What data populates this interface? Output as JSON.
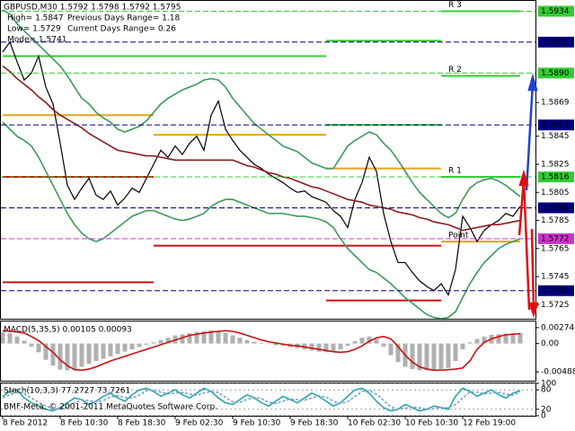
{
  "chart_data": [
    {
      "type": "line",
      "title": "GBPUSD,M30  1.5792 1.5798 1.5792 1.5795",
      "annotations": [
        "High= 1.5847",
        "Previous Days Range= 1.18",
        "Low= 1.5729",
        "Current Days Range= 0.26",
        "Mode= 1.5741"
      ],
      "categories": [
        "8 Feb 2012",
        null,
        null,
        null,
        null,
        null,
        null,
        null,
        "8 Feb 10:30",
        null,
        null,
        null,
        null,
        null,
        null,
        null,
        "8 Feb 18:30",
        null,
        null,
        null,
        null,
        null,
        null,
        null,
        "9 Feb 02:30",
        null,
        null,
        null,
        null,
        null,
        null,
        null,
        "9 Feb 10:30",
        null,
        null,
        null,
        null,
        null,
        null,
        null,
        "9 Feb 18:30",
        null,
        null,
        null,
        null,
        null,
        null,
        null,
        "10 Feb 02:30",
        null,
        null,
        null,
        null,
        null,
        null,
        null,
        "10 Feb 10:30",
        null,
        null,
        null,
        null,
        null,
        null,
        null,
        "12 Feb 19:00",
        null,
        null,
        null,
        null,
        null,
        null,
        null,
        null
      ],
      "series": [
        {
          "color": "#000000",
          "values": [
            1.5905,
            1.5912,
            1.5898,
            1.5885,
            1.589,
            1.5902,
            1.588,
            1.5868,
            1.584,
            1.581,
            1.58,
            1.5808,
            1.5815,
            1.5803,
            1.58,
            1.5806,
            1.5796,
            1.5801,
            1.5808,
            1.5805,
            1.5815,
            1.5825,
            1.5835,
            1.583,
            1.5838,
            1.5832,
            1.584,
            1.5845,
            1.5835,
            1.586,
            1.587,
            1.585,
            1.5842,
            1.5835,
            1.583,
            1.5825,
            1.5822,
            1.5818,
            1.5815,
            1.5812,
            1.5808,
            1.5805,
            1.5806,
            1.5802,
            1.58,
            1.5798,
            1.5792,
            1.5788,
            1.578,
            1.58,
            1.5812,
            1.583,
            1.582,
            1.579,
            1.577,
            1.5755,
            1.5755,
            1.5748,
            1.5742,
            1.5738,
            1.5735,
            1.574,
            1.5732,
            1.575,
            1.5788,
            1.578,
            1.577,
            1.5778,
            1.5782,
            1.5785,
            1.579,
            1.5788,
            1.5795
          ]
        },
        {
          "color": "#8b1c1c",
          "values": [
            1.5895,
            1.5891,
            1.5886,
            1.5882,
            1.5878,
            1.5873,
            1.5869,
            1.5864,
            1.586,
            1.5857,
            1.5854,
            1.5851,
            1.5847,
            1.5844,
            1.5841,
            1.5838,
            1.5835,
            1.5834,
            1.5833,
            1.5832,
            1.5831,
            1.5831,
            1.583,
            1.5829,
            1.5828,
            1.5828,
            1.5828,
            1.5828,
            1.5828,
            1.5828,
            1.5828,
            1.5828,
            1.5828,
            1.5826,
            1.5824,
            1.5823,
            1.5821,
            1.5819,
            1.5818,
            1.5816,
            1.5815,
            1.5813,
            1.5811,
            1.5809,
            1.5808,
            1.5806,
            1.5804,
            1.5802,
            1.58,
            1.5799,
            1.5798,
            1.5796,
            1.5795,
            1.5794,
            1.5793,
            1.5791,
            1.579,
            1.5789,
            1.5787,
            1.5786,
            1.5784,
            1.5783,
            1.5782,
            1.578,
            1.5778,
            1.5779,
            1.578,
            1.5781,
            1.5782,
            1.5782,
            1.5783,
            1.5784,
            1.5785
          ]
        },
        {
          "color": "#3c9a5a",
          "values": [
            1.5935,
            1.5932,
            1.5925,
            1.592,
            1.5915,
            1.591,
            1.5905,
            1.59,
            1.5895,
            1.5888,
            1.588,
            1.5872,
            1.5868,
            1.5862,
            1.5858,
            1.5855,
            1.585,
            1.5848,
            1.585,
            1.5852,
            1.5856,
            1.5862,
            1.5868,
            1.5872,
            1.5875,
            1.5878,
            1.588,
            1.5882,
            1.5885,
            1.5886,
            1.5885,
            1.588,
            1.5872,
            1.5866,
            1.586,
            1.5854,
            1.585,
            1.5846,
            1.5842,
            1.5838,
            1.5836,
            1.5834,
            1.583,
            1.5826,
            1.5824,
            1.5822,
            1.5822,
            1.583,
            1.5838,
            1.5842,
            1.5845,
            1.5848,
            1.5846,
            1.584,
            1.5835,
            1.5828,
            1.582,
            1.5812,
            1.5805,
            1.58,
            1.5795,
            1.579,
            1.5787,
            1.579,
            1.58,
            1.5808,
            1.5812,
            1.5814,
            1.5815,
            1.5813,
            1.581,
            1.5806,
            1.5802
          ]
        },
        {
          "color": "#3c9a5a",
          "values": [
            1.5855,
            1.585,
            1.5845,
            1.5842,
            1.5838,
            1.583,
            1.582,
            1.581,
            1.58,
            1.579,
            1.5782,
            1.5776,
            1.5772,
            1.577,
            1.5772,
            1.5776,
            1.578,
            1.5784,
            1.5788,
            1.579,
            1.5792,
            1.5792,
            1.579,
            1.5788,
            1.5786,
            1.5785,
            1.5786,
            1.5788,
            1.579,
            1.5795,
            1.5798,
            1.58,
            1.58,
            1.5798,
            1.5796,
            1.5794,
            1.5792,
            1.579,
            1.579,
            1.579,
            1.5789,
            1.5788,
            1.5788,
            1.5787,
            1.5786,
            1.5784,
            1.578,
            1.5772,
            1.5765,
            1.576,
            1.5755,
            1.575,
            1.5748,
            1.5744,
            1.574,
            1.5735,
            1.573,
            1.5726,
            1.5722,
            1.5718,
            1.5716,
            1.5715,
            1.5716,
            1.572,
            1.573,
            1.574,
            1.5748,
            1.5755,
            1.576,
            1.5765,
            1.5768,
            1.577,
            1.5772
          ]
        }
      ],
      "pivots": [
        {
          "label": "R 3",
          "color": "#33cc33",
          "values": [
            null,
            null,
            1.5913,
            1.5934
          ]
        },
        {
          "label": "R 2",
          "color": "#33cc33",
          "values": [
            1.5902,
            1.5902,
            1.5853,
            1.5888
          ]
        },
        {
          "label": "R 1",
          "color": "#33cc33",
          "values": [
            null,
            null,
            null,
            1.5816
          ]
        },
        {
          "label": "Point",
          "color": "#e8a317",
          "values": [
            1.586,
            1.5846,
            1.5822,
            1.577
          ]
        },
        {
          "color": "#cc1111",
          "values": [
            1.5816,
            1.5767,
            1.5767,
            null
          ]
        },
        {
          "color": "#cc1111",
          "values": [
            1.5741,
            null,
            1.5728,
            null
          ]
        }
      ],
      "levels": [
        {
          "value": 1.5934,
          "color": "#33cc33"
        },
        {
          "value": 1.5912,
          "color": "#000080"
        },
        {
          "value": 1.589,
          "label": "1.5890",
          "color": "#33cc33"
        },
        {
          "value": 1.5853,
          "color": "#000080"
        },
        {
          "value": 1.5816,
          "color": "#33cc33"
        },
        {
          "value": 1.5794,
          "color": "#000080"
        },
        {
          "value": 1.5772,
          "color": "#cc33cc"
        },
        {
          "value": 1.5735,
          "color": "#000080"
        }
      ],
      "ylim": [
        1.5715,
        1.5942
      ],
      "yticks": [
        1.5869,
        1.5845,
        1.5825,
        1.5805,
        1.5785,
        1.5765,
        1.5745,
        1.5725
      ],
      "grid": false
    },
    {
      "type": "bar",
      "title": "MACD(5,35,5) 0.00105 0.00093",
      "series": [
        {
          "color": "#b0b0b0",
          "values": [
            0.002,
            0.0018,
            0.0012,
            0.0005,
            -0.0005,
            -0.0015,
            -0.0028,
            -0.0038,
            -0.0045,
            -0.0046,
            -0.0044,
            -0.004,
            -0.0035,
            -0.003,
            -0.0026,
            -0.0022,
            -0.0018,
            -0.0014,
            -0.001,
            -0.0006,
            -0.0002,
            0.0002,
            0.0006,
            0.001,
            0.0014,
            0.0016,
            0.0018,
            0.002,
            0.0021,
            0.0022,
            0.0021,
            0.0018,
            0.0014,
            0.001,
            0.0006,
            0.0003,
            0.0001,
            -0.0001,
            -0.0003,
            -0.0004,
            -0.0006,
            -0.0008,
            -0.001,
            -0.0012,
            -0.0014,
            -0.0015,
            -0.0014,
            -0.001,
            -0.0004,
            0.0004,
            0.001,
            0.0012,
            0.0008,
            -0.0005,
            -0.002,
            -0.0032,
            -0.004,
            -0.0044,
            -0.0046,
            -0.0046,
            -0.0045,
            -0.0044,
            -0.0042,
            -0.003,
            -0.001,
            0.0002,
            0.0008,
            0.0012,
            0.0015,
            0.0016,
            0.0017,
            0.0018,
            0.0018
          ]
        },
        {
          "type": "line",
          "color": "#cc1111",
          "values": [
            0.0022,
            0.0021,
            0.002,
            0.0018,
            0.0012,
            0.0005,
            -0.0005,
            -0.0015,
            -0.0028,
            -0.0038,
            -0.0045,
            -0.0046,
            -0.0044,
            -0.004,
            -0.0035,
            -0.003,
            -0.0026,
            -0.0022,
            -0.0018,
            -0.0014,
            -0.001,
            -0.0006,
            -0.0002,
            0.0002,
            0.0006,
            0.001,
            0.0014,
            0.0016,
            0.0018,
            0.002,
            0.0021,
            0.0022,
            0.0021,
            0.0018,
            0.0014,
            0.001,
            0.0006,
            0.0003,
            0.0001,
            -0.0001,
            -0.0003,
            -0.0004,
            -0.0006,
            -0.0008,
            -0.001,
            -0.0012,
            -0.0014,
            -0.0015,
            -0.0014,
            -0.001,
            -0.0004,
            0.0004,
            0.001,
            0.0012,
            0.0008,
            -0.0005,
            -0.002,
            -0.0032,
            -0.004,
            -0.0044,
            -0.0046,
            -0.0046,
            -0.0045,
            -0.0044,
            -0.0042,
            -0.003,
            -0.001,
            0.0002,
            0.0008,
            0.0012,
            0.0015,
            0.0016,
            0.0017
          ]
        }
      ],
      "ylim": [
        -0.0064,
        0.0038
      ],
      "yticks": [
        0.00274,
        {
          "value": 0,
          "label": "0.00"
        },
        -0.00488
      ]
    },
    {
      "type": "line",
      "title": "Stoch(10,3,3) 77.2727 73.7261",
      "subtitle": "BMF-Meta, © 2001-2011 MetaQuotes Software Corp.",
      "series": [
        {
          "color": "#2aa7a7",
          "values": [
            60,
            75,
            80,
            55,
            40,
            30,
            20,
            15,
            25,
            40,
            55,
            50,
            35,
            45,
            60,
            70,
            55,
            45,
            65,
            80,
            85,
            75,
            60,
            70,
            80,
            65,
            55,
            70,
            85,
            75,
            55,
            40,
            35,
            50,
            65,
            55,
            40,
            30,
            45,
            60,
            50,
            40,
            55,
            70,
            60,
            45,
            30,
            40,
            60,
            80,
            85,
            70,
            45,
            25,
            15,
            20,
            35,
            25,
            15,
            20,
            30,
            25,
            20,
            60,
            85,
            75,
            60,
            70,
            80,
            65,
            55,
            70,
            77.2727
          ]
        },
        {
          "color": "#7aa0c8",
          "dashed": true,
          "values": [
            55,
            65,
            72,
            68,
            55,
            42,
            30,
            22,
            20,
            27,
            40,
            48,
            47,
            43,
            47,
            58,
            62,
            57,
            55,
            63,
            77,
            80,
            73,
            68,
            70,
            72,
            67,
            63,
            70,
            75,
            72,
            57,
            43,
            42,
            50,
            57,
            53,
            42,
            38,
            45,
            52,
            50,
            48,
            55,
            62,
            58,
            45,
            38,
            43,
            60,
            75,
            78,
            67,
            47,
            28,
            20,
            23,
            27,
            25,
            20,
            22,
            25,
            25,
            35,
            55,
            73,
            73,
            68,
            70,
            72,
            67,
            63,
            73.7261
          ]
        }
      ],
      "ylim": [
        0,
        100
      ],
      "yticks": [
        100,
        80,
        20,
        0
      ],
      "grid": true
    }
  ]
}
